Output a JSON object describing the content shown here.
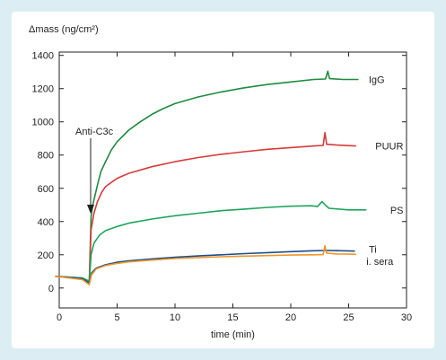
{
  "chart_data": {
    "type": "line",
    "ylabel": "Δmass (ng/cm²)",
    "xlabel": "time (min)",
    "xlim": [
      0,
      30
    ],
    "ylim": [
      -120,
      1420
    ],
    "xticks": [
      0,
      5,
      10,
      15,
      20,
      25,
      30
    ],
    "yticks": [
      0,
      200,
      400,
      600,
      800,
      1000,
      1200,
      1400
    ],
    "grid": false,
    "legend": "labels at right end of each line",
    "annotation": {
      "text": "Anti-C3c",
      "x": 2.6,
      "y": 460
    },
    "series": [
      {
        "name": "IgG",
        "color": "#1f8a3e",
        "points": [
          [
            -0.3,
            70
          ],
          [
            2.0,
            60
          ],
          [
            2.6,
            40
          ],
          [
            2.75,
            430
          ],
          [
            2.9,
            500
          ],
          [
            3.1,
            560
          ],
          [
            3.3,
            620
          ],
          [
            3.6,
            700
          ],
          [
            4.0,
            760
          ],
          [
            4.5,
            830
          ],
          [
            5.0,
            880
          ],
          [
            6.0,
            950
          ],
          [
            7.0,
            1000
          ],
          [
            8.0,
            1045
          ],
          [
            9.0,
            1080
          ],
          [
            10.0,
            1110
          ],
          [
            12.0,
            1150
          ],
          [
            14.0,
            1180
          ],
          [
            16.0,
            1205
          ],
          [
            18.0,
            1225
          ],
          [
            20.0,
            1240
          ],
          [
            22.0,
            1255
          ],
          [
            23.0,
            1258
          ],
          [
            23.2,
            1305
          ],
          [
            23.35,
            1260
          ],
          [
            24.5,
            1255
          ],
          [
            25.8,
            1255
          ]
        ]
      },
      {
        "name": "PUUR",
        "color": "#d83a3a",
        "points": [
          [
            -0.3,
            70
          ],
          [
            2.0,
            60
          ],
          [
            2.6,
            40
          ],
          [
            2.75,
            350
          ],
          [
            3.0,
            450
          ],
          [
            3.3,
            520
          ],
          [
            3.7,
            580
          ],
          [
            4.0,
            610
          ],
          [
            5.0,
            660
          ],
          [
            6.0,
            690
          ],
          [
            8.0,
            730
          ],
          [
            10.0,
            760
          ],
          [
            12.0,
            785
          ],
          [
            14.0,
            805
          ],
          [
            16.0,
            820
          ],
          [
            18.0,
            835
          ],
          [
            20.0,
            845
          ],
          [
            22.0,
            855
          ],
          [
            22.8,
            858
          ],
          [
            22.95,
            935
          ],
          [
            23.1,
            865
          ],
          [
            24.0,
            860
          ],
          [
            25.6,
            855
          ]
        ]
      },
      {
        "name": "PS",
        "color": "#1ea45b",
        "points": [
          [
            -0.3,
            70
          ],
          [
            2.0,
            60
          ],
          [
            2.6,
            40
          ],
          [
            2.75,
            200
          ],
          [
            3.0,
            270
          ],
          [
            3.5,
            320
          ],
          [
            4.0,
            345
          ],
          [
            5.0,
            370
          ],
          [
            6.0,
            390
          ],
          [
            8.0,
            415
          ],
          [
            10.0,
            435
          ],
          [
            12.0,
            450
          ],
          [
            14.0,
            465
          ],
          [
            16.0,
            475
          ],
          [
            18.0,
            485
          ],
          [
            20.0,
            492
          ],
          [
            21.8,
            495
          ],
          [
            22.3,
            490
          ],
          [
            22.7,
            520
          ],
          [
            23.0,
            498
          ],
          [
            23.3,
            480
          ],
          [
            25.0,
            470
          ],
          [
            26.5,
            470
          ]
        ]
      },
      {
        "name": "Ti",
        "color": "#1d4e8a",
        "points": [
          [
            -0.3,
            70
          ],
          [
            2.0,
            55
          ],
          [
            2.6,
            30
          ],
          [
            2.8,
            90
          ],
          [
            3.2,
            120
          ],
          [
            4.0,
            140
          ],
          [
            5.0,
            155
          ],
          [
            6.0,
            163
          ],
          [
            8.0,
            175
          ],
          [
            10.0,
            185
          ],
          [
            12.0,
            193
          ],
          [
            14.0,
            200
          ],
          [
            16.0,
            207
          ],
          [
            18.0,
            213
          ],
          [
            20.0,
            219
          ],
          [
            22.0,
            224
          ],
          [
            23.0,
            226
          ],
          [
            24.0,
            225
          ],
          [
            25.5,
            222
          ]
        ]
      },
      {
        "name": "i. sera",
        "color": "#f0962a",
        "points": [
          [
            -0.3,
            70
          ],
          [
            2.0,
            50
          ],
          [
            2.6,
            20
          ],
          [
            2.8,
            80
          ],
          [
            3.2,
            115
          ],
          [
            4.0,
            135
          ],
          [
            5.0,
            148
          ],
          [
            6.0,
            157
          ],
          [
            8.0,
            168
          ],
          [
            10.0,
            177
          ],
          [
            12.0,
            183
          ],
          [
            14.0,
            188
          ],
          [
            16.0,
            192
          ],
          [
            18.0,
            195
          ],
          [
            20.0,
            198
          ],
          [
            22.0,
            200
          ],
          [
            22.8,
            201
          ],
          [
            22.95,
            255
          ],
          [
            23.1,
            210
          ],
          [
            24.0,
            205
          ],
          [
            25.6,
            203
          ]
        ]
      }
    ]
  }
}
